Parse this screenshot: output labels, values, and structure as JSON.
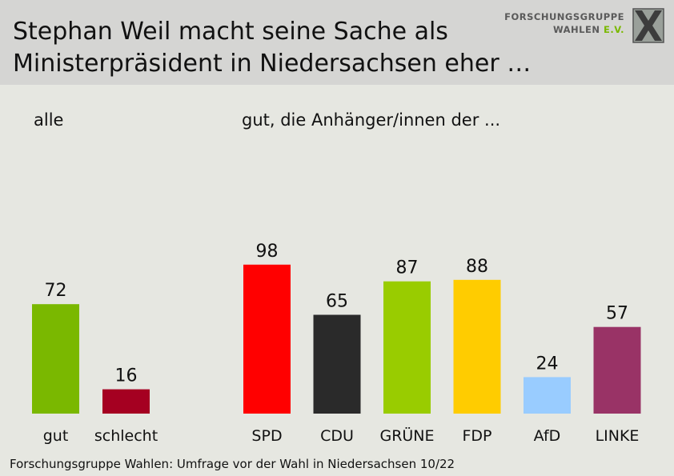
{
  "header": {
    "title": "Stephan Weil macht seine Sache als\nMinisterpräsident in Niedersachsen eher …"
  },
  "logo": {
    "line1": "FORSCHUNGSGRUPPE",
    "line2_main": "WAHLEN",
    "line2_suffix": "E.V.",
    "icon": "fgw-x-logo-icon"
  },
  "panels": {
    "left_label": "alle",
    "right_label": "gut, die Anhänger/innen der ..."
  },
  "chart_data": [
    {
      "type": "bar",
      "categories": [
        "gut",
        "schlecht"
      ],
      "values": [
        72,
        16
      ],
      "colors": [
        "#7ab800",
        "#a50021"
      ],
      "ylim": [
        0,
        100
      ]
    },
    {
      "type": "bar",
      "categories": [
        "SPD",
        "CDU",
        "GRÜNE",
        "FDP",
        "AfD",
        "LINKE"
      ],
      "values": [
        98,
        65,
        87,
        88,
        24,
        57
      ],
      "colors": [
        "#ff0000",
        "#2a2a2a",
        "#99cc00",
        "#ffcc00",
        "#99ccff",
        "#993366"
      ],
      "ylim": [
        0,
        100
      ]
    }
  ],
  "footer": {
    "source": "Forschungsgruppe Wahlen: Umfrage vor der Wahl in Niedersachsen 10/22"
  }
}
